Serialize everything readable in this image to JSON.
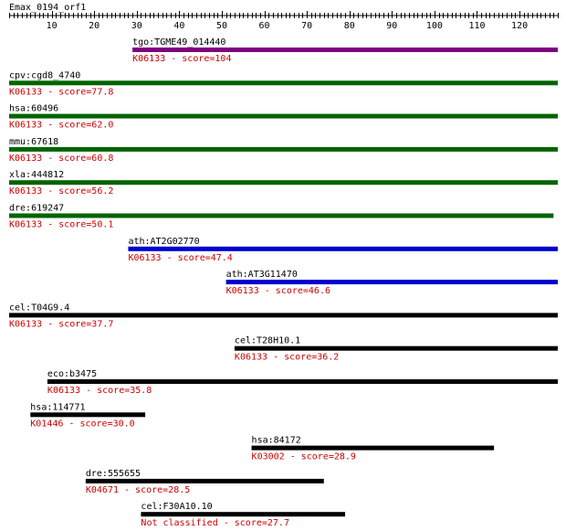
{
  "query": {
    "name": "Emax_0194_orf1",
    "length": 129,
    "ticks": [
      "10",
      "20",
      "30",
      "40",
      "50",
      "60",
      "70",
      "80",
      "90",
      "100",
      "110",
      "120"
    ]
  },
  "colors": {
    "purple": "#800080",
    "green": "#006400",
    "blue": "#0000cc",
    "black": "#000000",
    "score_text": "#cc0000"
  },
  "hits": [
    {
      "name": "tgo:TGME49_014440",
      "score_label": "K06133 - score=104",
      "start": 29,
      "end": 129,
      "color": "purple"
    },
    {
      "name": "cpv:cgd8_4740",
      "score_label": "K06133 - score=77.8",
      "start": 0,
      "end": 129,
      "color": "green"
    },
    {
      "name": "hsa:60496",
      "score_label": "K06133 - score=62.0",
      "start": 0,
      "end": 129,
      "color": "green"
    },
    {
      "name": "mmu:67618",
      "score_label": "K06133 - score=60.8",
      "start": 0,
      "end": 129,
      "color": "green"
    },
    {
      "name": "xla:444812",
      "score_label": "K06133 - score=56.2",
      "start": 0,
      "end": 129,
      "color": "green"
    },
    {
      "name": "dre:619247",
      "score_label": "K06133 - score=50.1",
      "start": 0,
      "end": 128,
      "color": "green"
    },
    {
      "name": "ath:AT2G02770",
      "score_label": "K06133 - score=47.4",
      "start": 28,
      "end": 129,
      "color": "blue"
    },
    {
      "name": "ath:AT3G11470",
      "score_label": "K06133 - score=46.6",
      "start": 51,
      "end": 129,
      "color": "blue"
    },
    {
      "name": "cel:T04G9.4",
      "score_label": "K06133 - score=37.7",
      "start": 0,
      "end": 129,
      "color": "black"
    },
    {
      "name": "cel:T28H10.1",
      "score_label": "K06133 - score=36.2",
      "start": 53,
      "end": 129,
      "color": "black"
    },
    {
      "name": "eco:b3475",
      "score_label": "K06133 - score=35.8",
      "start": 9,
      "end": 129,
      "color": "black"
    },
    {
      "name": "hsa:114771",
      "score_label": "K01446 - score=30.0",
      "start": 5,
      "end": 32,
      "color": "black"
    },
    {
      "name": "hsa:84172",
      "score_label": "K03002 - score=28.9",
      "start": 57,
      "end": 114,
      "color": "black"
    },
    {
      "name": "dre:555655",
      "score_label": "K04671 - score=28.5",
      "start": 18,
      "end": 74,
      "color": "black"
    },
    {
      "name": "cel:F30A10.10",
      "score_label": "Not classified - score=27.7",
      "start": 31,
      "end": 79,
      "color": "black"
    }
  ]
}
